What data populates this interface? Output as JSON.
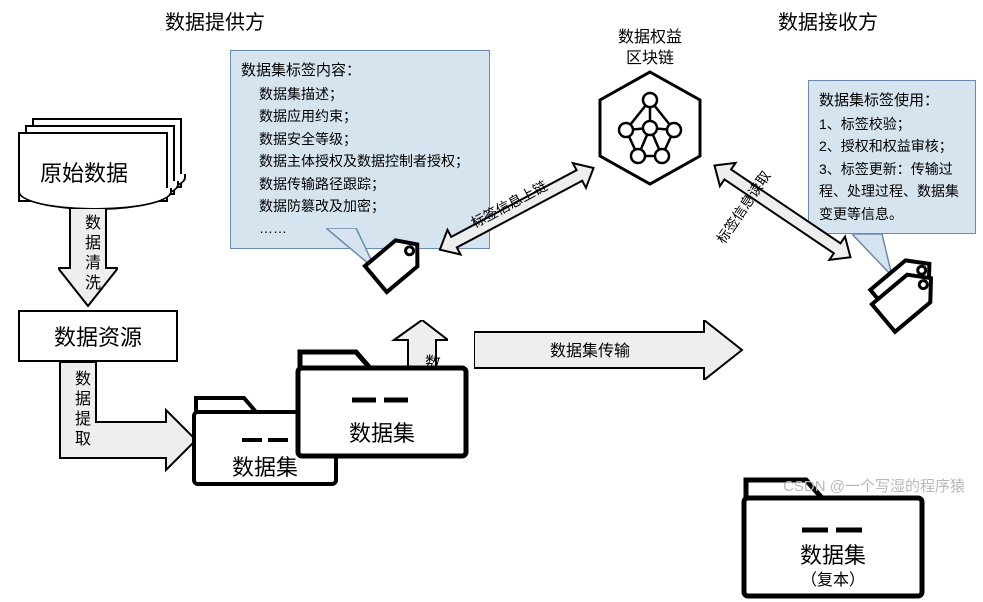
{
  "headers": {
    "provider": "数据提供方",
    "receiver": "数据接收方"
  },
  "blockchain": {
    "label": "数据权益\n区块链"
  },
  "original_data": {
    "label": "原始数据"
  },
  "resource": {
    "label": "数据资源"
  },
  "arrows": {
    "clean": "数据清洗",
    "extract": "数据提取",
    "tagging": "数据打标",
    "to_chain": "标签信息上链",
    "from_chain": "标签信息读取",
    "transfer": "数据集传输"
  },
  "dataset1": {
    "label": "数据集"
  },
  "dataset2": {
    "label": "数据集"
  },
  "dataset3": {
    "label": "数据集",
    "sub": "（复本）"
  },
  "callout_left": {
    "title": "数据集标签内容：",
    "items": [
      "数据集描述；",
      "数据应用约束；",
      "数据安全等级；",
      "数据主体授权及数据控制者授权；",
      "数据传输路径跟踪；",
      "数据防篡改及加密；",
      "……"
    ]
  },
  "callout_right": {
    "title": "数据集标签使用：",
    "items": [
      "1、标签校验；",
      "2、授权和权益审核；",
      "3、标签更新：传输过程、处理过程、数据集变更等信息。"
    ]
  },
  "watermark": "CSDN @一个写湿的程序猿",
  "colors": {
    "callout_bg": "#d6e4f0",
    "callout_border": "#6a8bb0",
    "arrow_fill": "#eeeeee",
    "arrow_stroke": "#000000",
    "bg": "#ffffff"
  }
}
